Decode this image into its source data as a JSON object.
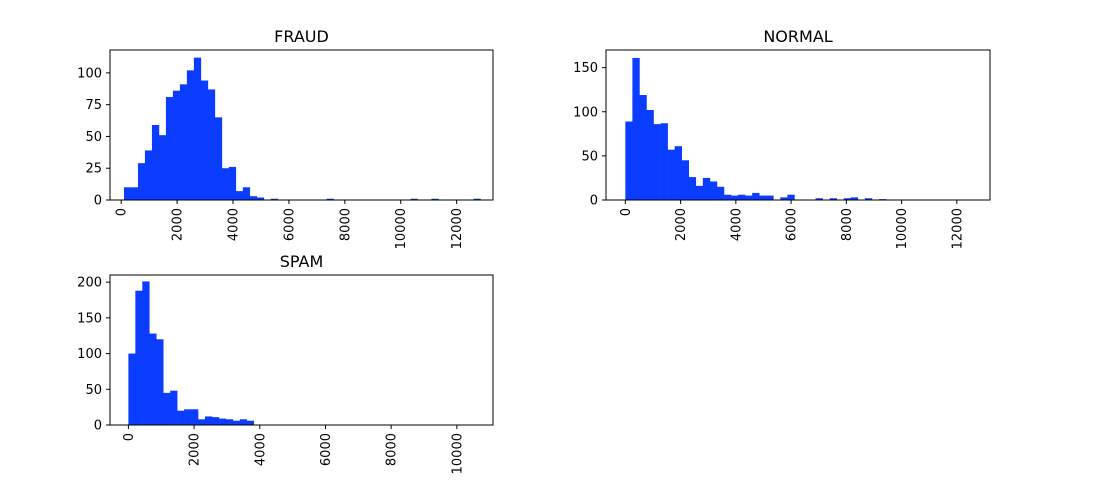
{
  "chart_data": [
    {
      "type": "histogram",
      "title": "FRAUD",
      "xlabel": "",
      "ylabel": "",
      "xlim": [
        -400,
        13300
      ],
      "ylim": [
        0,
        118
      ],
      "xticks": [
        0,
        2000,
        4000,
        6000,
        8000,
        10000,
        12000
      ],
      "xtick_labels": [
        "0",
        "2000",
        "4000",
        "6000",
        "8000",
        "10000",
        "12000"
      ],
      "yticks": [
        0,
        25,
        50,
        75,
        100
      ],
      "ytick_labels": [
        "0",
        "25",
        "50",
        "75",
        "100"
      ],
      "bin_start": 100,
      "bin_width": 250,
      "counts": [
        10,
        10,
        29,
        39,
        59,
        51,
        81,
        86,
        91,
        102,
        112,
        94,
        87,
        65,
        25,
        26,
        7,
        10,
        3,
        2,
        0,
        1,
        0,
        0,
        0,
        0,
        0,
        0,
        0,
        1,
        0,
        0,
        0,
        0,
        0,
        0,
        0,
        0,
        0,
        0,
        0,
        1,
        0,
        0,
        1,
        0,
        0,
        0,
        0,
        0,
        1
      ],
      "color": "#0a3dff",
      "grid": false,
      "legend": "none"
    },
    {
      "type": "histogram",
      "title": "NORMAL",
      "xlabel": "",
      "ylabel": "",
      "xlim": [
        -700,
        13200
      ],
      "ylim": [
        0,
        170
      ],
      "xticks": [
        0,
        2000,
        4000,
        6000,
        8000,
        10000,
        12000
      ],
      "xtick_labels": [
        "0",
        "2000",
        "4000",
        "6000",
        "8000",
        "10000",
        "12000"
      ],
      "yticks": [
        0,
        50,
        100,
        150
      ],
      "ytick_labels": [
        "0",
        "50",
        "100",
        "150"
      ],
      "bin_start": 0,
      "bin_width": 255,
      "counts": [
        89,
        161,
        119,
        102,
        86,
        87,
        57,
        61,
        45,
        26,
        16,
        25,
        21,
        15,
        6,
        5,
        6,
        5,
        8,
        5,
        5,
        0,
        3,
        6,
        0,
        0,
        0,
        2,
        0,
        2,
        0,
        2,
        3,
        0,
        2,
        0,
        1,
        0,
        0,
        0,
        0,
        0,
        0,
        0,
        0,
        0,
        0,
        0,
        0,
        0,
        0
      ],
      "color": "#0a3dff",
      "grid": false,
      "legend": "none"
    },
    {
      "type": "histogram",
      "title": "SPAM",
      "xlabel": "",
      "ylabel": "",
      "xlim": [
        -560,
        11100
      ],
      "ylim": [
        0,
        210
      ],
      "xticks": [
        0,
        2000,
        4000,
        6000,
        8000,
        10000
      ],
      "xtick_labels": [
        "0",
        "2000",
        "4000",
        "6000",
        "8000",
        "10000"
      ],
      "yticks": [
        0,
        50,
        100,
        150,
        200
      ],
      "ytick_labels": [
        "0",
        "50",
        "100",
        "150",
        "200"
      ],
      "bin_start": 0,
      "bin_width": 212,
      "counts": [
        100,
        188,
        201,
        128,
        120,
        45,
        48,
        20,
        22,
        22,
        8,
        12,
        11,
        9,
        8,
        6,
        8,
        6,
        0,
        0,
        0,
        0,
        0,
        0,
        0,
        0,
        0,
        0,
        0,
        0,
        0,
        0,
        0,
        0,
        0,
        0,
        0,
        0,
        0,
        0,
        0,
        0,
        0,
        0,
        0,
        0,
        0,
        0,
        0,
        0,
        0
      ],
      "color": "#0a3dff",
      "grid": false,
      "legend": "none"
    }
  ]
}
